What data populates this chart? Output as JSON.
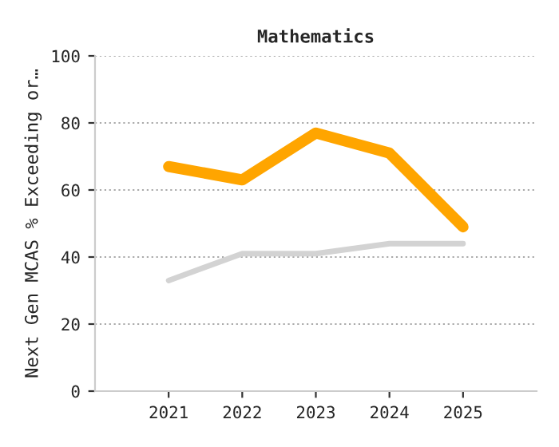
{
  "chart_data": {
    "type": "line",
    "title": "Mathematics",
    "ylabel": "Next Gen MCAS % Exceeding or…",
    "categories": [
      "2021",
      "2022",
      "2023",
      "2024",
      "2025"
    ],
    "series": [
      {
        "color": "#ffa500",
        "values": [
          67,
          63,
          77,
          71,
          49
        ]
      },
      {
        "color": "#d3d3d3",
        "values": [
          33,
          41,
          41,
          44,
          44
        ]
      }
    ],
    "ylim": [
      0,
      100
    ],
    "yticks": [
      0,
      20,
      40,
      60,
      80,
      100
    ],
    "grid": "y"
  }
}
